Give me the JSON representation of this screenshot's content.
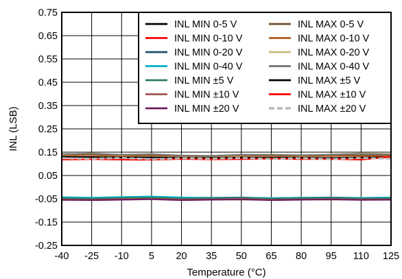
{
  "chart_data": {
    "type": "line",
    "xlabel": "Temperature (°C)",
    "ylabel": "INL (LSB)",
    "xlim": [
      -40,
      125
    ],
    "ylim": [
      -0.25,
      0.75
    ],
    "xticks": [
      "-40",
      "-25",
      "-10",
      "5",
      "20",
      "35",
      "50",
      "65",
      "80",
      "95",
      "110",
      "125"
    ],
    "yticks": [
      "-0.25",
      "-0.15",
      "-0.05",
      "0.05",
      "0.15",
      "0.25",
      "0.35",
      "0.45",
      "0.55",
      "0.65",
      "0.75"
    ],
    "grid": true,
    "legend_position": "top-right",
    "x": [
      -40,
      -25,
      -10,
      5,
      20,
      35,
      50,
      65,
      80,
      95,
      110,
      125
    ],
    "series": [
      {
        "name": "INL MIN 0-5 V",
        "color": "#000000",
        "dash": "solid",
        "values": [
          -0.045,
          -0.05,
          -0.047,
          -0.045,
          -0.05,
          -0.048,
          -0.047,
          -0.05,
          -0.048,
          -0.047,
          -0.049,
          -0.047
        ]
      },
      {
        "name": "INL MIN 0-10 V",
        "color": "#ff0000",
        "dash": "solid",
        "values": [
          -0.05,
          -0.052,
          -0.05,
          -0.048,
          -0.052,
          -0.05,
          -0.049,
          -0.052,
          -0.05,
          -0.049,
          -0.051,
          -0.05
        ]
      },
      {
        "name": "INL MIN 0-20 V",
        "color": "#1c4e6b",
        "dash": "solid",
        "values": [
          -0.045,
          -0.047,
          -0.043,
          -0.042,
          -0.046,
          -0.045,
          -0.044,
          -0.047,
          -0.045,
          -0.044,
          -0.046,
          -0.045
        ]
      },
      {
        "name": "INL MIN 0-40 V",
        "color": "#00b0c8",
        "dash": "solid",
        "values": [
          -0.043,
          -0.045,
          -0.042,
          -0.04,
          -0.044,
          -0.046,
          -0.045,
          -0.047,
          -0.045,
          -0.046,
          -0.046,
          -0.044
        ]
      },
      {
        "name": "INL MIN ±5 V",
        "color": "#2e7d5b",
        "dash": "solid",
        "values": [
          -0.048,
          -0.05,
          -0.047,
          -0.045,
          -0.049,
          -0.048,
          -0.046,
          -0.05,
          -0.048,
          -0.047,
          -0.049,
          -0.048
        ]
      },
      {
        "name": "INL MIN ±10 V",
        "color": "#a0524e",
        "dash": "solid",
        "values": [
          -0.052,
          -0.054,
          -0.051,
          -0.05,
          -0.053,
          -0.052,
          -0.05,
          -0.054,
          -0.052,
          -0.051,
          -0.053,
          -0.052
        ]
      },
      {
        "name": "INL MIN ±20 V",
        "color": "#6e1c5e",
        "dash": "solid",
        "values": [
          -0.055,
          -0.056,
          -0.054,
          -0.052,
          -0.056,
          -0.054,
          -0.053,
          -0.056,
          -0.054,
          -0.053,
          -0.055,
          -0.054
        ]
      },
      {
        "name": "INL MAX 0-5 V",
        "color": "#6e4a2a",
        "dash": "solid",
        "values": [
          0.138,
          0.14,
          0.135,
          0.138,
          0.134,
          0.132,
          0.136,
          0.135,
          0.134,
          0.136,
          0.135,
          0.137
        ]
      },
      {
        "name": "INL MAX 0-10 V",
        "color": "#b55a1a",
        "dash": "solid",
        "values": [
          0.136,
          0.137,
          0.133,
          0.136,
          0.132,
          0.131,
          0.134,
          0.133,
          0.132,
          0.134,
          0.133,
          0.135
        ]
      },
      {
        "name": "INL MAX 0-20 V",
        "color": "#c8b878",
        "dash": "solid",
        "values": [
          0.14,
          0.145,
          0.138,
          0.142,
          0.135,
          0.133,
          0.138,
          0.14,
          0.136,
          0.14,
          0.145,
          0.142
        ]
      },
      {
        "name": "INL MAX 0-40 V",
        "color": "#707070",
        "dash": "solid",
        "values": [
          0.142,
          0.143,
          0.139,
          0.141,
          0.136,
          0.134,
          0.139,
          0.138,
          0.137,
          0.139,
          0.142,
          0.14
        ]
      },
      {
        "name": "INL MAX ±5 V",
        "color": "#000000",
        "dash": "solid",
        "values": [
          0.13,
          0.129,
          0.127,
          0.128,
          0.126,
          0.125,
          0.127,
          0.126,
          0.126,
          0.125,
          0.127,
          0.128
        ]
      },
      {
        "name": "INL MAX ±10 V",
        "color": "#ff0000",
        "dash": "solid",
        "values": [
          0.118,
          0.12,
          0.118,
          0.117,
          0.121,
          0.119,
          0.12,
          0.122,
          0.12,
          0.121,
          0.118,
          0.13
        ]
      },
      {
        "name": "INL MAX ±20 V",
        "color": "#b8b8b8",
        "dash": "dashed",
        "values": [
          0.124,
          0.122,
          0.125,
          0.12,
          0.124,
          0.122,
          0.125,
          0.121,
          0.124,
          0.12,
          0.125,
          0.122
        ]
      }
    ]
  }
}
